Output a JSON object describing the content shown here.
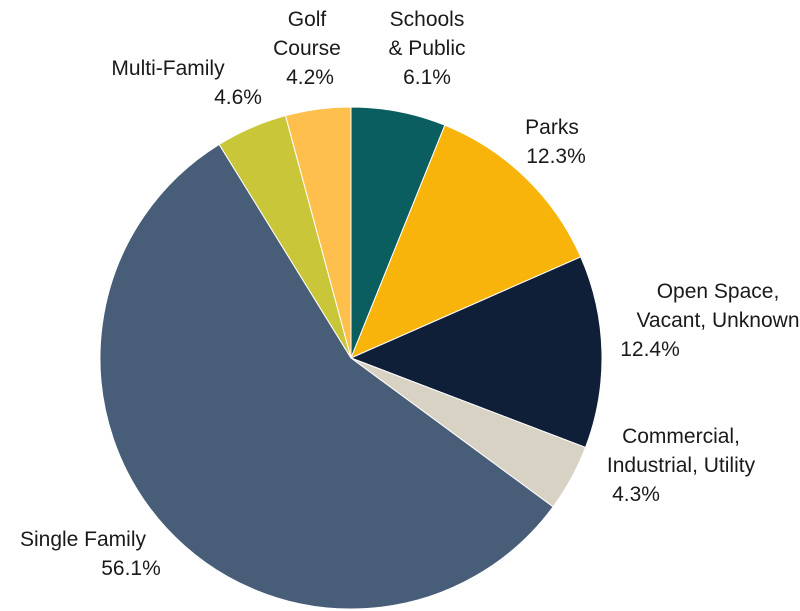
{
  "chart_data": {
    "type": "pie",
    "title": "",
    "start_angle_deg": 0,
    "direction": "clockwise",
    "slices": [
      {
        "label_lines": [
          "Schools",
          "& Public"
        ],
        "percent_text": "6.1%",
        "value": 6.1,
        "color": "#0b5e60",
        "slug": "schools-public"
      },
      {
        "label_lines": [
          "Parks"
        ],
        "percent_text": "12.3%",
        "value": 12.3,
        "color": "#f9b40b",
        "slug": "parks"
      },
      {
        "label_lines": [
          "Open Space,",
          "Vacant, Unknown"
        ],
        "percent_text": "12.4%",
        "value": 12.4,
        "color": "#0f1f38",
        "slug": "open-space-vacant-unknown"
      },
      {
        "label_lines": [
          "Commercial,",
          "Industrial, Utility"
        ],
        "percent_text": "4.3%",
        "value": 4.3,
        "color": "#d8d2c4",
        "slug": "commercial-industrial-utility"
      },
      {
        "label_lines": [
          "Single Family"
        ],
        "percent_text": "56.1%",
        "value": 56.1,
        "color": "#475d78",
        "slug": "single-family"
      },
      {
        "label_lines": [
          "Multi-Family"
        ],
        "percent_text": "4.6%",
        "value": 4.6,
        "color": "#cac63a",
        "slug": "multi-family"
      },
      {
        "label_lines": [
          "Golf",
          "Course"
        ],
        "percent_text": "4.2%",
        "value": 4.2,
        "color": "#ffbf4d",
        "slug": "golf-course"
      }
    ]
  }
}
